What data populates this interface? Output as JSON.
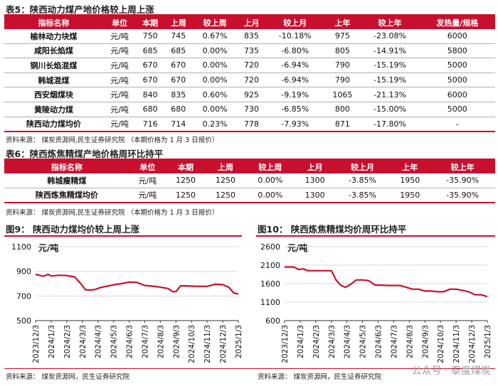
{
  "table5": {
    "caption": "表5：陕西动力煤产地价格较上周上涨",
    "headers": [
      "指标名称",
      "单位",
      "本期",
      "上周",
      "较上周",
      "上月",
      "较上月",
      "上年",
      "较上年",
      "发热量/规格"
    ],
    "rows": [
      [
        "榆林动力块煤",
        "元/吨",
        "750",
        "745",
        "0.67%",
        "835",
        "-10.18%",
        "975",
        "-23.08%",
        "6000"
      ],
      [
        "咸阳长焰煤",
        "元/吨",
        "685",
        "685",
        "0.00%",
        "735",
        "-6.80%",
        "805",
        "-14.91%",
        "5800"
      ],
      [
        "铜川长焰混煤",
        "元/吨",
        "670",
        "670",
        "0.00%",
        "720",
        "-6.94%",
        "790",
        "-15.19%",
        "5000"
      ],
      [
        "韩城混煤",
        "元/吨",
        "670",
        "670",
        "0.00%",
        "720",
        "-6.94%",
        "790",
        "-15.19%",
        "5000"
      ],
      [
        "西安烟煤块",
        "元/吨",
        "840",
        "835",
        "0.60%",
        "925",
        "-9.19%",
        "1065",
        "-21.13%",
        "6000"
      ],
      [
        "黄陵动力煤",
        "元/吨",
        "680",
        "680",
        "0.00%",
        "730",
        "-6.85%",
        "800",
        "-15.00%",
        "5000"
      ],
      [
        "陕西动力煤均价",
        "元/吨",
        "716",
        "714",
        "0.23%",
        "778",
        "-7.93%",
        "871",
        "-17.80%",
        "-"
      ]
    ],
    "source": "资料来源：  煤炭资源网,民生证券研究院  （本期价格为 1 月 3 日报价）"
  },
  "table6": {
    "caption": "表6：陕西炼焦精煤产地价格周环比持平",
    "headers": [
      "指标名称",
      "单位",
      "本期",
      "上周",
      "较上周",
      "上月",
      "较上月",
      "上年",
      "较上年"
    ],
    "rows": [
      [
        "韩城瘦精煤",
        "元/吨",
        "1250",
        "1250",
        "0.00%",
        "1300",
        "-3.85%",
        "1950",
        "-35.90%"
      ],
      [
        "陕西炼焦精煤均价",
        "元/吨",
        "1250",
        "1250",
        "0.00%",
        "1300",
        "-3.85%",
        "1950",
        "-35.90%"
      ]
    ],
    "source": "资料来源：  煤炭资源网,民生证券研究院  （本期价格为 1 月 3 日报价）"
  },
  "fig9": {
    "title": "图9：  陕西动力煤均价较上周上涨",
    "source": "资料来源：  煤炭资源网，民生证券研究院"
  },
  "fig10": {
    "title": "图10：  陕西炼焦精煤均价周环比持平",
    "source": "资料来源：  煤炭资源网，民生证券研究院"
  },
  "watermark": "公众号 · 泰度煤炭",
  "colors": {
    "accent": "#c8102e"
  },
  "chart_data": [
    {
      "type": "line",
      "title": "图9：  陕西动力煤均价较上周上涨",
      "ylabel": "元/吨",
      "ylim": [
        500,
        1100
      ],
      "yticks": [
        500,
        700,
        900,
        1100
      ],
      "x_ticks": [
        "2023/12/3",
        "2024/1/3",
        "2024/2/3",
        "2024/3/3",
        "2024/4/3",
        "2024/5/3",
        "2024/6/3",
        "2024/7/3",
        "2024/8/3",
        "2024/9/3",
        "2024/10/3",
        "2024/11/3",
        "2024/12/3",
        "2025/1/3"
      ],
      "x_range": [
        0,
        13
      ],
      "grid": true,
      "series": [
        {
          "name": "陕西动力煤均价",
          "color": "#c8102e",
          "x": [
            0,
            0.5,
            0.8,
            1.0,
            1.5,
            2.0,
            2.5,
            2.9,
            3.2,
            3.5,
            3.8,
            4.2,
            4.6,
            5.0,
            5.5,
            6.0,
            6.5,
            6.8,
            7.0,
            7.5,
            8.0,
            8.5,
            8.8,
            9.0,
            9.3,
            9.6,
            10.0,
            10.5,
            11.0,
            11.5,
            12.0,
            12.4,
            12.7,
            13.0
          ],
          "y": [
            875,
            860,
            875,
            862,
            868,
            865,
            855,
            800,
            750,
            748,
            752,
            770,
            780,
            790,
            800,
            812,
            810,
            795,
            785,
            780,
            772,
            760,
            735,
            735,
            782,
            782,
            780,
            778,
            778,
            795,
            792,
            770,
            725,
            716
          ]
        }
      ]
    },
    {
      "type": "line",
      "title": "图10：  陕西炼焦精煤均价周环比持平",
      "ylabel": "元/吨",
      "ylim": [
        600,
        2600
      ],
      "yticks": [
        600,
        1100,
        1600,
        2100,
        2600
      ],
      "x_ticks": [
        "2023/12/3",
        "2024/1/3",
        "2024/2/3",
        "2024/3/3",
        "2024/4/3",
        "2024/5/3",
        "2024/6/3",
        "2024/7/3",
        "2024/8/3",
        "2024/9/3",
        "2024/10/3",
        "2024/11/3",
        "2024/12/3",
        "2025/1/3"
      ],
      "x_range": [
        0,
        13
      ],
      "grid": true,
      "series": [
        {
          "name": "陕西炼焦精煤均价",
          "color": "#c8102e",
          "x": [
            0,
            0.6,
            0.9,
            1.2,
            1.5,
            2.0,
            2.5,
            3.0,
            3.3,
            3.6,
            3.9,
            4.3,
            4.6,
            5.0,
            5.4,
            5.8,
            6.2,
            6.6,
            7.0,
            7.4,
            7.8,
            8.2,
            8.6,
            9.0,
            9.4,
            9.8,
            10.2,
            10.6,
            11.0,
            11.4,
            11.8,
            12.2,
            12.6,
            13.0
          ],
          "y": [
            2050,
            2050,
            1980,
            2000,
            1950,
            1950,
            1950,
            1950,
            1700,
            1560,
            1500,
            1600,
            1700,
            1700,
            1680,
            1560,
            1560,
            1550,
            1550,
            1550,
            1500,
            1450,
            1450,
            1400,
            1400,
            1380,
            1380,
            1450,
            1450,
            1420,
            1380,
            1300,
            1300,
            1250
          ]
        }
      ]
    }
  ]
}
